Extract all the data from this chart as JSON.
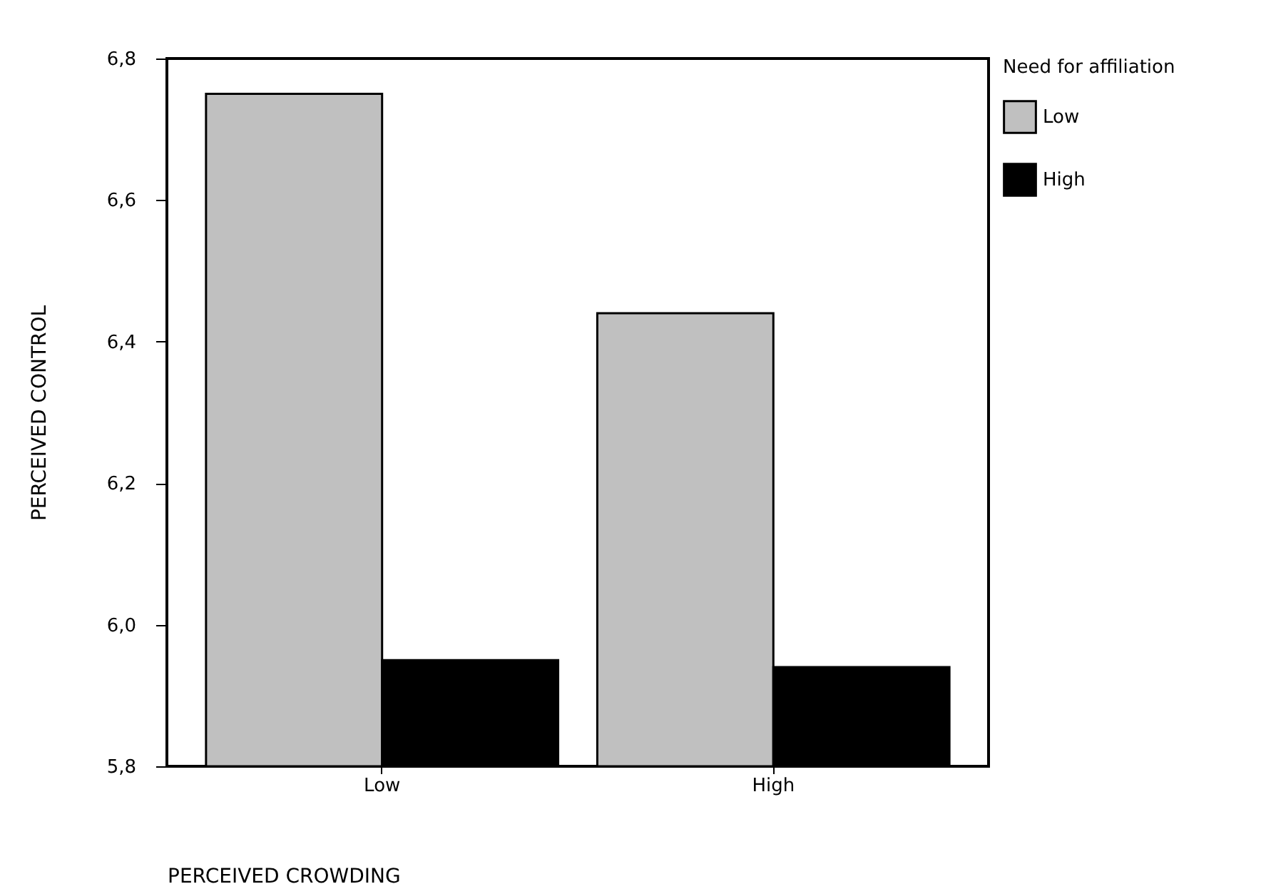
{
  "chart_data": {
    "type": "bar",
    "xlabel": "PERCEIVED CROWDING",
    "ylabel": "PERCEIVED CONTROL",
    "legend_title": "Need for affiliation",
    "categories": [
      "Low",
      "High"
    ],
    "series": [
      {
        "name": "Low",
        "color": "#c0c0c0",
        "values": [
          6.75,
          6.44
        ]
      },
      {
        "name": "High",
        "color": "#000000",
        "values": [
          5.95,
          5.94
        ]
      }
    ],
    "ylim": [
      5.8,
      6.8
    ],
    "yticks": [
      {
        "value": 5.8,
        "label": "5,8"
      },
      {
        "value": 6.0,
        "label": "6,0"
      },
      {
        "value": 6.2,
        "label": "6,2"
      },
      {
        "value": 6.4,
        "label": "6,4"
      },
      {
        "value": 6.6,
        "label": "6,6"
      },
      {
        "value": 6.8,
        "label": "6,8"
      }
    ],
    "grid": false,
    "legend": "right"
  }
}
